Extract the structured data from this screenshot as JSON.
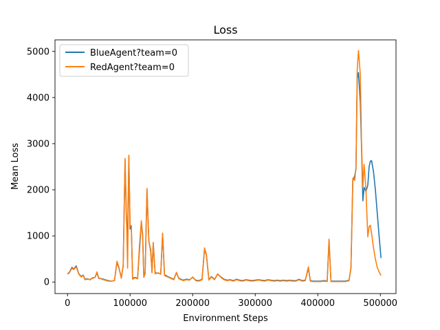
{
  "chart_data": {
    "type": "line",
    "title": "Loss",
    "xlabel": "Environment Steps",
    "ylabel": "Mean Loss",
    "xlim": [
      -20000,
      525000
    ],
    "ylim": [
      -250,
      5250
    ],
    "x_ticks": [
      0,
      100000,
      200000,
      300000,
      400000,
      500000
    ],
    "y_ticks": [
      0,
      1000,
      2000,
      3000,
      4000,
      5000
    ],
    "grid": false,
    "legend_position": "top-left",
    "series": [
      {
        "name": "BlueAgent?team=0",
        "color": "#1f77b4",
        "points": [
          [
            0,
            180
          ],
          [
            3000,
            210
          ],
          [
            7000,
            320
          ],
          [
            10000,
            280
          ],
          [
            14000,
            350
          ],
          [
            18000,
            180
          ],
          [
            22000,
            120
          ],
          [
            25000,
            150
          ],
          [
            28000,
            60
          ],
          [
            32000,
            70
          ],
          [
            36000,
            50
          ],
          [
            40000,
            90
          ],
          [
            44000,
            100
          ],
          [
            47000,
            200
          ],
          [
            50000,
            80
          ],
          [
            55000,
            70
          ],
          [
            60000,
            50
          ],
          [
            65000,
            30
          ],
          [
            70000,
            20
          ],
          [
            75000,
            30
          ],
          [
            79000,
            430
          ],
          [
            82000,
            310
          ],
          [
            86000,
            100
          ],
          [
            89000,
            350
          ],
          [
            92000,
            2640
          ],
          [
            94000,
            1430
          ],
          [
            96000,
            900
          ],
          [
            98000,
            2720
          ],
          [
            100000,
            1150
          ],
          [
            102000,
            1220
          ],
          [
            104000,
            80
          ],
          [
            108000,
            100
          ],
          [
            112000,
            80
          ],
          [
            115000,
            700
          ],
          [
            118000,
            1300
          ],
          [
            120000,
            1050
          ],
          [
            122000,
            130
          ],
          [
            124000,
            200
          ],
          [
            127000,
            2000
          ],
          [
            130000,
            880
          ],
          [
            133000,
            700
          ],
          [
            135000,
            220
          ],
          [
            137000,
            850
          ],
          [
            140000,
            200
          ],
          [
            145000,
            190
          ],
          [
            149000,
            180
          ],
          [
            152000,
            1040
          ],
          [
            155000,
            160
          ],
          [
            160000,
            120
          ],
          [
            165000,
            90
          ],
          [
            170000,
            60
          ],
          [
            174000,
            200
          ],
          [
            178000,
            80
          ],
          [
            185000,
            40
          ],
          [
            190000,
            60
          ],
          [
            195000,
            50
          ],
          [
            200000,
            100
          ],
          [
            205000,
            40
          ],
          [
            210000,
            30
          ],
          [
            215000,
            60
          ],
          [
            219000,
            720
          ],
          [
            222000,
            580
          ],
          [
            226000,
            50
          ],
          [
            230000,
            120
          ],
          [
            235000,
            60
          ],
          [
            240000,
            170
          ],
          [
            245000,
            110
          ],
          [
            250000,
            60
          ],
          [
            255000,
            40
          ],
          [
            260000,
            50
          ],
          [
            265000,
            30
          ],
          [
            270000,
            60
          ],
          [
            275000,
            40
          ],
          [
            280000,
            30
          ],
          [
            285000,
            50
          ],
          [
            290000,
            40
          ],
          [
            295000,
            30
          ],
          [
            300000,
            40
          ],
          [
            305000,
            50
          ],
          [
            310000,
            40
          ],
          [
            315000,
            30
          ],
          [
            320000,
            50
          ],
          [
            325000,
            40
          ],
          [
            330000,
            30
          ],
          [
            335000,
            40
          ],
          [
            340000,
            30
          ],
          [
            345000,
            40
          ],
          [
            350000,
            30
          ],
          [
            355000,
            40
          ],
          [
            360000,
            30
          ],
          [
            365000,
            30
          ],
          [
            370000,
            60
          ],
          [
            375000,
            30
          ],
          [
            380000,
            40
          ],
          [
            385000,
            300
          ],
          [
            388000,
            30
          ],
          [
            392000,
            20
          ],
          [
            398000,
            20
          ],
          [
            404000,
            20
          ],
          [
            410000,
            30
          ],
          [
            415000,
            20
          ],
          [
            418000,
            900
          ],
          [
            421000,
            20
          ],
          [
            426000,
            20
          ],
          [
            432000,
            20
          ],
          [
            438000,
            20
          ],
          [
            444000,
            20
          ],
          [
            450000,
            40
          ],
          [
            453000,
            300
          ],
          [
            456000,
            2200
          ],
          [
            459000,
            2300
          ],
          [
            461000,
            2450
          ],
          [
            463000,
            4400
          ],
          [
            465000,
            4540
          ],
          [
            468000,
            3900
          ],
          [
            470000,
            2900
          ],
          [
            472000,
            1760
          ],
          [
            474000,
            2050
          ],
          [
            477000,
            1960
          ],
          [
            480000,
            2100
          ],
          [
            482000,
            2500
          ],
          [
            484000,
            2620
          ],
          [
            486000,
            2630
          ],
          [
            489000,
            2400
          ],
          [
            492000,
            2000
          ],
          [
            495000,
            1500
          ],
          [
            498000,
            1000
          ],
          [
            501000,
            520
          ]
        ]
      },
      {
        "name": "RedAgent?team=0",
        "color": "#ff7f0e",
        "points": [
          [
            0,
            170
          ],
          [
            3000,
            200
          ],
          [
            7000,
            300
          ],
          [
            10000,
            270
          ],
          [
            14000,
            330
          ],
          [
            18000,
            170
          ],
          [
            22000,
            110
          ],
          [
            25000,
            140
          ],
          [
            28000,
            50
          ],
          [
            32000,
            60
          ],
          [
            36000,
            60
          ],
          [
            40000,
            80
          ],
          [
            44000,
            100
          ],
          [
            47000,
            220
          ],
          [
            50000,
            90
          ],
          [
            55000,
            60
          ],
          [
            60000,
            40
          ],
          [
            65000,
            20
          ],
          [
            70000,
            20
          ],
          [
            75000,
            30
          ],
          [
            79000,
            450
          ],
          [
            82000,
            330
          ],
          [
            86000,
            80
          ],
          [
            89000,
            380
          ],
          [
            92000,
            2680
          ],
          [
            94000,
            1500
          ],
          [
            96000,
            300
          ],
          [
            98000,
            2750
          ],
          [
            100000,
            1250
          ],
          [
            102000,
            1180
          ],
          [
            104000,
            60
          ],
          [
            108000,
            90
          ],
          [
            112000,
            70
          ],
          [
            115000,
            800
          ],
          [
            118000,
            1330
          ],
          [
            120000,
            1000
          ],
          [
            122000,
            100
          ],
          [
            124000,
            180
          ],
          [
            127000,
            2030
          ],
          [
            130000,
            900
          ],
          [
            133000,
            650
          ],
          [
            135000,
            200
          ],
          [
            137000,
            860
          ],
          [
            140000,
            180
          ],
          [
            145000,
            200
          ],
          [
            149000,
            170
          ],
          [
            152000,
            1060
          ],
          [
            155000,
            140
          ],
          [
            160000,
            110
          ],
          [
            165000,
            80
          ],
          [
            170000,
            50
          ],
          [
            174000,
            210
          ],
          [
            178000,
            70
          ],
          [
            185000,
            30
          ],
          [
            190000,
            50
          ],
          [
            195000,
            40
          ],
          [
            200000,
            110
          ],
          [
            205000,
            30
          ],
          [
            210000,
            20
          ],
          [
            215000,
            50
          ],
          [
            219000,
            740
          ],
          [
            222000,
            600
          ],
          [
            226000,
            40
          ],
          [
            230000,
            110
          ],
          [
            235000,
            50
          ],
          [
            240000,
            180
          ],
          [
            245000,
            100
          ],
          [
            250000,
            50
          ],
          [
            255000,
            30
          ],
          [
            260000,
            40
          ],
          [
            265000,
            20
          ],
          [
            270000,
            50
          ],
          [
            275000,
            30
          ],
          [
            280000,
            20
          ],
          [
            285000,
            40
          ],
          [
            290000,
            30
          ],
          [
            295000,
            20
          ],
          [
            300000,
            30
          ],
          [
            305000,
            40
          ],
          [
            310000,
            30
          ],
          [
            315000,
            20
          ],
          [
            320000,
            40
          ],
          [
            325000,
            30
          ],
          [
            330000,
            20
          ],
          [
            335000,
            30
          ],
          [
            340000,
            20
          ],
          [
            345000,
            30
          ],
          [
            350000,
            20
          ],
          [
            355000,
            30
          ],
          [
            360000,
            20
          ],
          [
            365000,
            20
          ],
          [
            370000,
            50
          ],
          [
            375000,
            20
          ],
          [
            380000,
            30
          ],
          [
            385000,
            330
          ],
          [
            388000,
            20
          ],
          [
            392000,
            10
          ],
          [
            398000,
            10
          ],
          [
            404000,
            10
          ],
          [
            410000,
            20
          ],
          [
            415000,
            10
          ],
          [
            418000,
            930
          ],
          [
            421000,
            10
          ],
          [
            426000,
            10
          ],
          [
            432000,
            10
          ],
          [
            438000,
            10
          ],
          [
            444000,
            10
          ],
          [
            450000,
            30
          ],
          [
            453000,
            320
          ],
          [
            456000,
            2250
          ],
          [
            459000,
            2200
          ],
          [
            461000,
            2500
          ],
          [
            463000,
            4600
          ],
          [
            465000,
            5020
          ],
          [
            468000,
            4500
          ],
          [
            470000,
            3000
          ],
          [
            472000,
            2050
          ],
          [
            474000,
            2550
          ],
          [
            477000,
            2000
          ],
          [
            480000,
            980
          ],
          [
            482000,
            1200
          ],
          [
            484000,
            1230
          ],
          [
            486000,
            1050
          ],
          [
            489000,
            750
          ],
          [
            492000,
            500
          ],
          [
            495000,
            320
          ],
          [
            498000,
            220
          ],
          [
            501000,
            140
          ]
        ]
      }
    ]
  }
}
